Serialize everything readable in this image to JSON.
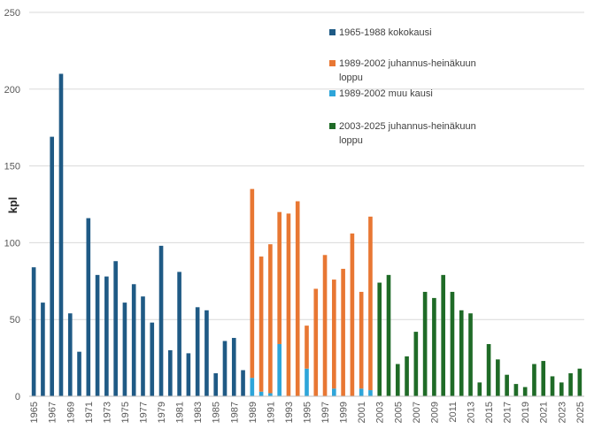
{
  "chart_data": {
    "type": "bar",
    "stacked": true,
    "title": "",
    "xlabel": "",
    "ylabel": "kpl",
    "ylim": [
      0,
      250
    ],
    "yticks": [
      0,
      50,
      100,
      150,
      200,
      250
    ],
    "grid": true,
    "legend_position": "top-right",
    "categories": [
      1965,
      1966,
      1967,
      1968,
      1969,
      1970,
      1971,
      1972,
      1973,
      1974,
      1975,
      1976,
      1977,
      1978,
      1979,
      1980,
      1981,
      1982,
      1983,
      1984,
      1985,
      1986,
      1987,
      1988,
      1989,
      1990,
      1991,
      1992,
      1993,
      1994,
      1995,
      1996,
      1997,
      1998,
      1999,
      2000,
      2001,
      2002,
      2003,
      2004,
      2005,
      2006,
      2007,
      2008,
      2009,
      2010,
      2011,
      2012,
      2013,
      2014,
      2015,
      2016,
      2017,
      2018,
      2019,
      2020,
      2021,
      2022,
      2023,
      2024,
      2025
    ],
    "x_tick_labels": [
      "1965",
      "1967",
      "1969",
      "1971",
      "1973",
      "1975",
      "1977",
      "1979",
      "1981",
      "1983",
      "1985",
      "1987",
      "1989",
      "1991",
      "1993",
      "1995",
      "1997",
      "1999",
      "2001",
      "2003",
      "2005",
      "2007",
      "2009",
      "2011",
      "2013",
      "2015",
      "2017",
      "2019",
      "2021",
      "2023",
      "2025"
    ],
    "series": [
      {
        "name": "1965-1988 kokokausi",
        "color": "#1f5a85",
        "values": [
          84,
          61,
          169,
          210,
          54,
          29,
          116,
          79,
          78,
          88,
          61,
          73,
          65,
          48,
          98,
          30,
          81,
          28,
          58,
          56,
          15,
          36,
          38,
          17,
          0,
          0,
          0,
          0,
          0,
          0,
          0,
          0,
          0,
          0,
          0,
          0,
          0,
          0,
          0,
          0,
          0,
          0,
          0,
          0,
          0,
          0,
          0,
          0,
          0,
          0,
          0,
          0,
          0,
          0,
          0,
          0,
          0,
          0,
          0,
          0,
          0
        ]
      },
      {
        "name": "1989-2002 muu kausi",
        "color": "#2ea5d9",
        "values": [
          0,
          0,
          0,
          0,
          0,
          0,
          0,
          0,
          0,
          0,
          0,
          0,
          0,
          0,
          0,
          0,
          0,
          0,
          0,
          0,
          0,
          0,
          0,
          0,
          12,
          3,
          2,
          34,
          0,
          0,
          18,
          0,
          0,
          5,
          0,
          0,
          5,
          4,
          0,
          0,
          0,
          0,
          0,
          0,
          0,
          0,
          0,
          0,
          0,
          0,
          0,
          0,
          0,
          0,
          0,
          0,
          0,
          0,
          0,
          0,
          0
        ]
      },
      {
        "name": "1989-2002 juhannus-heinäkuun loppu",
        "color": "#e87733",
        "values": [
          0,
          0,
          0,
          0,
          0,
          0,
          0,
          0,
          0,
          0,
          0,
          0,
          0,
          0,
          0,
          0,
          0,
          0,
          0,
          0,
          0,
          0,
          0,
          0,
          123,
          88,
          97,
          86,
          119,
          127,
          28,
          70,
          92,
          71,
          83,
          106,
          63,
          113,
          0,
          0,
          0,
          0,
          0,
          0,
          0,
          0,
          0,
          0,
          0,
          0,
          0,
          0,
          0,
          0,
          0,
          0,
          0,
          0,
          0,
          0,
          0
        ]
      },
      {
        "name": "2003-2025 juhannus-heinäkuun loppu",
        "color": "#1f6b27",
        "values": [
          0,
          0,
          0,
          0,
          0,
          0,
          0,
          0,
          0,
          0,
          0,
          0,
          0,
          0,
          0,
          0,
          0,
          0,
          0,
          0,
          0,
          0,
          0,
          0,
          0,
          0,
          0,
          0,
          0,
          0,
          0,
          0,
          0,
          0,
          0,
          0,
          0,
          0,
          74,
          79,
          21,
          26,
          42,
          68,
          64,
          79,
          68,
          56,
          54,
          9,
          34,
          24,
          14,
          8,
          6,
          21,
          23,
          13,
          9,
          15,
          18
        ]
      }
    ],
    "legend": [
      {
        "line1": "1965-1988 kokokausi",
        "line2": "",
        "color": "#1f5a85"
      },
      {
        "line1": "1989-2002 juhannus-heinäkuun",
        "line2": "loppu",
        "color": "#e87733"
      },
      {
        "line1": "1989-2002 muu kausi",
        "line2": "",
        "color": "#2ea5d9"
      },
      {
        "line1": "2003-2025 juhannus-heinäkuun",
        "line2": "loppu",
        "color": "#1f6b27"
      }
    ]
  }
}
